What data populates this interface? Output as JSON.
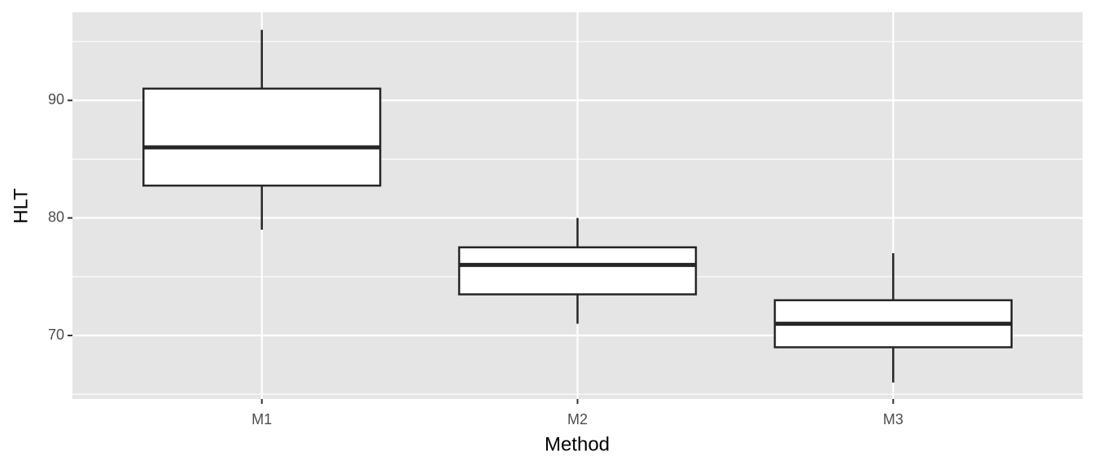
{
  "chart_data": {
    "type": "box",
    "x_label": "Method",
    "y_label": "HLT",
    "categories": [
      "M1",
      "M2",
      "M3"
    ],
    "boxes": [
      {
        "min": 79,
        "q1": 82.75,
        "median": 86,
        "q3": 91,
        "max": 96
      },
      {
        "min": 71,
        "q1": 73.5,
        "median": 76,
        "q3": 77.5,
        "max": 80
      },
      {
        "min": 66,
        "q1": 69,
        "median": 71,
        "q3": 73,
        "max": 77
      }
    ],
    "ylim": [
      64.6,
      97.5
    ],
    "yticks": [
      70,
      80,
      90
    ],
    "minor_yticks": [
      65,
      75,
      85,
      95
    ],
    "grid": true,
    "panel_color": "#e5e5e5",
    "box_fill": "#ffffff",
    "line_color": "#262626"
  }
}
